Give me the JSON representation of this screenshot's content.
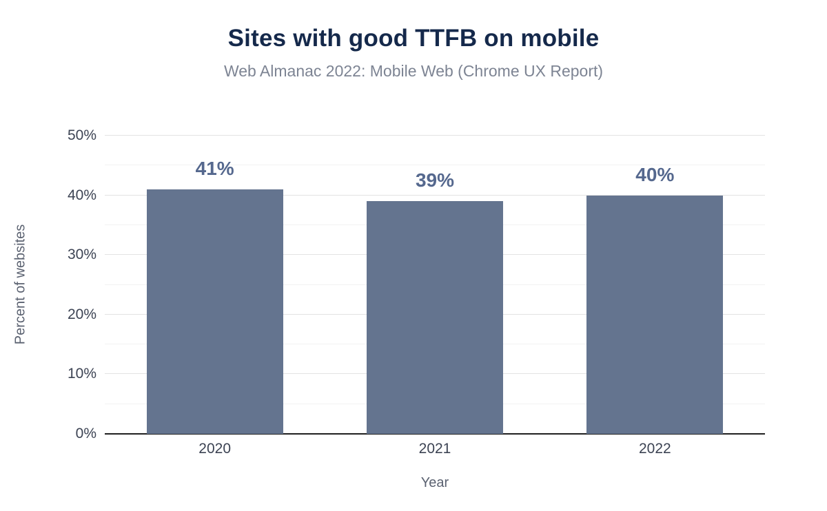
{
  "chart_data": {
    "type": "bar",
    "title": "Sites with good TTFB on mobile",
    "subtitle": "Web Almanac 2022: Mobile Web (Chrome UX Report)",
    "categories": [
      "2020",
      "2021",
      "2022"
    ],
    "values": [
      41,
      39,
      40
    ],
    "value_labels": [
      "41%",
      "39%",
      "40%"
    ],
    "xlabel": "Year",
    "ylabel": "Percent of websites",
    "ylim": [
      0,
      50
    ],
    "ytick_step": 10,
    "ytick_labels": [
      "0%",
      "10%",
      "20%",
      "30%",
      "40%",
      "50%"
    ],
    "grid": "horizontal, major every 10% with faint minor every 5%",
    "legend": "none",
    "colors": {
      "bar": "#64748f",
      "title": "#15294b",
      "subtitle": "#7d8493",
      "value_label": "#55688e",
      "tick_text": "#3c4353",
      "axis_title": "#5a6170",
      "axis_line": "#1f1f1f",
      "grid_major": "#e3e3e3",
      "grid_minor": "#f2f2f2",
      "background": "#ffffff"
    }
  }
}
